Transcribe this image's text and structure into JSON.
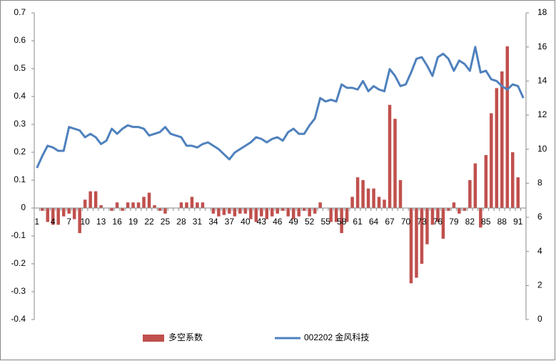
{
  "chart_data": {
    "type": "bar-line",
    "categories": [
      "1",
      null,
      null,
      "4",
      null,
      null,
      "7",
      null,
      null,
      "10",
      null,
      null,
      "13",
      null,
      null,
      "16",
      null,
      null,
      "19",
      null,
      null,
      "22",
      null,
      null,
      "25",
      null,
      null,
      "28",
      null,
      null,
      "31",
      null,
      null,
      "34",
      null,
      null,
      "37",
      null,
      null,
      "40",
      null,
      null,
      "43",
      null,
      null,
      "46",
      null,
      null,
      "49",
      null,
      null,
      "52",
      null,
      null,
      "55",
      null,
      null,
      "58",
      null,
      null,
      "61",
      null,
      null,
      "64",
      null,
      null,
      "67",
      null,
      null,
      "70",
      null,
      null,
      "73",
      null,
      null,
      "76",
      null,
      null,
      "79",
      null,
      null,
      "82",
      null,
      null,
      "85",
      null,
      null,
      "88",
      null,
      null,
      "91",
      null
    ],
    "series": [
      {
        "name": "多空系数",
        "color": "#c0504d",
        "kind": "bar",
        "values": [
          0,
          -0.01,
          -0.05,
          -0.06,
          -0.06,
          -0.03,
          -0.02,
          -0.04,
          -0.09,
          0.03,
          0.06,
          0.06,
          0.01,
          0,
          -0.01,
          0.02,
          -0.01,
          0.02,
          0.02,
          0.02,
          0.04,
          0.055,
          0.01,
          -0.01,
          -0.02,
          0,
          0,
          0.02,
          0.02,
          0.04,
          0.02,
          0.02,
          0,
          -0.02,
          -0.03,
          -0.025,
          -0.02,
          -0.03,
          -0.02,
          -0.02,
          -0.04,
          -0.05,
          -0.03,
          -0.04,
          -0.03,
          -0.02,
          -0.01,
          -0.03,
          -0.04,
          -0.03,
          -0.01,
          -0.03,
          -0.02,
          0.02,
          0,
          -0.05,
          -0.05,
          -0.09,
          -0.05,
          0.04,
          0.11,
          0.1,
          0.07,
          0.07,
          0.04,
          0.03,
          0.37,
          0.32,
          0.1,
          0,
          -0.27,
          -0.25,
          -0.2,
          -0.13,
          -0.06,
          -0.05,
          -0.11,
          -0.01,
          0.02,
          -0.02,
          -0.01,
          0.1,
          0.16,
          -0.07,
          0.19,
          0.34,
          0.43,
          0.49,
          0.58,
          0.2,
          0.11,
          0
        ]
      },
      {
        "name": "002202 金风科技",
        "color": "#4f81bd",
        "kind": "line",
        "axis": "y2",
        "values": [
          8.9,
          9.6,
          10.2,
          10.1,
          9.9,
          9.9,
          11.3,
          11.2,
          11.1,
          10.7,
          10.9,
          10.7,
          10.3,
          10.5,
          11.2,
          10.9,
          11.2,
          11.4,
          11.3,
          11.3,
          11.2,
          10.8,
          10.9,
          11.0,
          11.3,
          10.9,
          10.8,
          10.7,
          10.2,
          10.2,
          10.1,
          10.3,
          10.4,
          10.2,
          10.0,
          9.7,
          9.4,
          9.8,
          10.0,
          10.2,
          10.4,
          10.7,
          10.6,
          10.4,
          10.6,
          10.7,
          10.5,
          11.0,
          11.2,
          10.9,
          10.9,
          11.4,
          11.8,
          13.0,
          12.8,
          12.9,
          12.8,
          13.8,
          13.6,
          13.6,
          13.5,
          14.0,
          13.4,
          13.7,
          13.5,
          13.4,
          14.7,
          14.3,
          13.7,
          13.8,
          14.5,
          15.3,
          15.4,
          14.9,
          14.3,
          15.4,
          15.6,
          15.3,
          14.6,
          15.2,
          15.0,
          14.6,
          16.0,
          14.5,
          14.6,
          14.1,
          14.0,
          13.7,
          13.5,
          13.8,
          13.7,
          13.0
        ]
      }
    ],
    "ylim": [
      -0.4,
      0.7
    ],
    "yticks": [
      -0.4,
      -0.3,
      -0.2,
      -0.1,
      0,
      0.1,
      0.2,
      0.3,
      0.4,
      0.5,
      0.6,
      0.7
    ],
    "y2lim": [
      0,
      18
    ],
    "y2ticks": [
      0,
      2,
      4,
      6,
      8,
      10,
      12,
      14,
      16,
      18
    ],
    "grid": false,
    "legend": "bottom"
  }
}
